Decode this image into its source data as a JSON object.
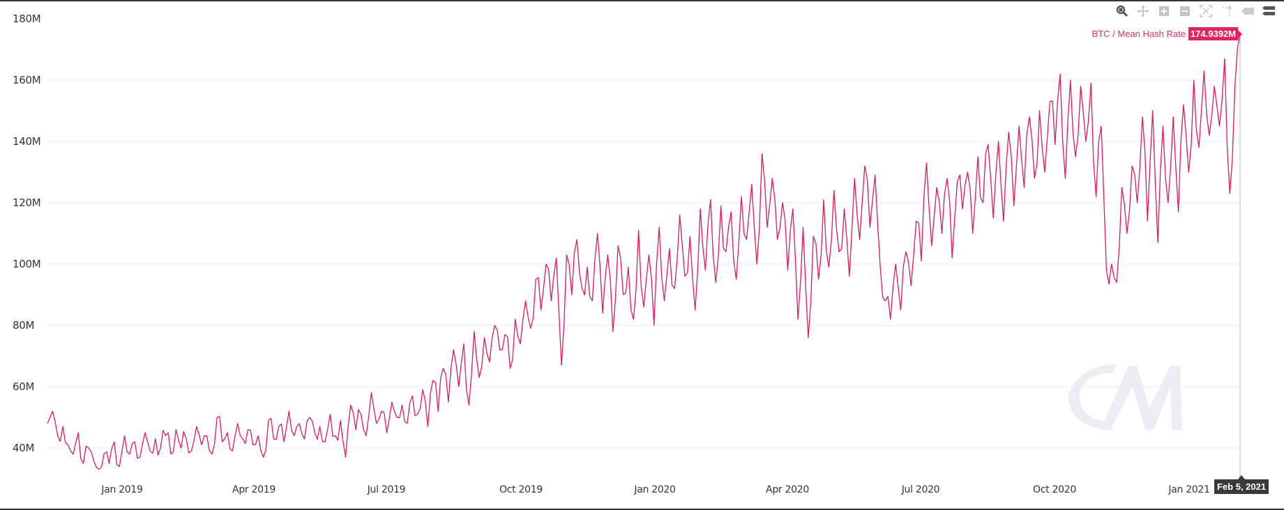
{
  "toolbar": {
    "icons": [
      "zoom-selection-icon",
      "pan-icon",
      "zoom-in-icon",
      "zoom-out-icon",
      "reset-zoom-icon",
      "annotation-pin-icon",
      "tag-icon",
      "menu-icon"
    ]
  },
  "legend": {
    "series_name": "BTC / Mean Hash Rate",
    "current_value": "174.9392M",
    "color": "#e0245e"
  },
  "crosshair": {
    "x_label": "Feb 5, 2021"
  },
  "watermark": "CM",
  "colors": {
    "line": "#d81b60",
    "grid": "#ececec",
    "watermark": "#ececf5",
    "axis_text": "#333333"
  },
  "chart_data": {
    "type": "line",
    "title": "BTC / Mean Hash Rate",
    "xlabel": "",
    "ylabel": "",
    "ylim": [
      30,
      180
    ],
    "y_ticks": [
      "40M",
      "60M",
      "80M",
      "100M",
      "120M",
      "140M",
      "160M",
      "180M"
    ],
    "y_tick_values": [
      40,
      60,
      80,
      100,
      120,
      140,
      160,
      180
    ],
    "x_ticks": [
      "Jan 2019",
      "Apr 2019",
      "Jul 2019",
      "Oct 2019",
      "Jan 2020",
      "Apr 2020",
      "Jul 2020",
      "Oct 2020",
      "Jan 2021"
    ],
    "x_range": [
      "2018-11-11",
      "2021-02-05"
    ],
    "grid": true,
    "legend_position": "top-right",
    "units": "M (TH/s)",
    "series": [
      {
        "name": "BTC / Mean Hash Rate",
        "sampling_days": 4,
        "start_date": "2018-11-11",
        "values": [
          48,
          52,
          44,
          47,
          41,
          38,
          45,
          35,
          40,
          36,
          33,
          38,
          35,
          42,
          34,
          44,
          38,
          42,
          37,
          45,
          39,
          43,
          40,
          44,
          38,
          46,
          40,
          43,
          39,
          47,
          41,
          44,
          38,
          50,
          42,
          45,
          39,
          48,
          43,
          46,
          41,
          44,
          37,
          49,
          43,
          47,
          42,
          52,
          44,
          48,
          43,
          50,
          45,
          47,
          42,
          51,
          44,
          49,
          37,
          54,
          46,
          51,
          44,
          58,
          48,
          52,
          45,
          55,
          50,
          54,
          48,
          57,
          51,
          59,
          47,
          62,
          52,
          66,
          55,
          72,
          60,
          74,
          54,
          78,
          63,
          76,
          68,
          80,
          72,
          77,
          66,
          82,
          74,
          88,
          79,
          95,
          85,
          100,
          88,
          102,
          67,
          103,
          90,
          108,
          92,
          99,
          88,
          110,
          84,
          103,
          78,
          106,
          90,
          99,
          82,
          111,
          86,
          103,
          80,
          112,
          88,
          105,
          92,
          116,
          96,
          109,
          85,
          118,
          98,
          121,
          94,
          119,
          104,
          117,
          95,
          122,
          108,
          126,
          100,
          136,
          112,
          128,
          108,
          120,
          98,
          118,
          82,
          112,
          76,
          109,
          95,
          121,
          99,
          124,
          104,
          118,
          96,
          128,
          108,
          132,
          112,
          129,
          99,
          88,
          82,
          100,
          85,
          104,
          93,
          114,
          101,
          133,
          106,
          125,
          110,
          128,
          102,
          127,
          118,
          130,
          110,
          135,
          120,
          139,
          115,
          140,
          114,
          143,
          119,
          145,
          125,
          148,
          128,
          150,
          130,
          153,
          139,
          162,
          128,
          160,
          135,
          158,
          140,
          159,
          122,
          145,
          98,
          100,
          94,
          125,
          110,
          132,
          120,
          148,
          114,
          150,
          107,
          145,
          120,
          148,
          117,
          152,
          130,
          160,
          138,
          163,
          142,
          158,
          145,
          167,
          123,
          158,
          175
        ]
      }
    ]
  }
}
